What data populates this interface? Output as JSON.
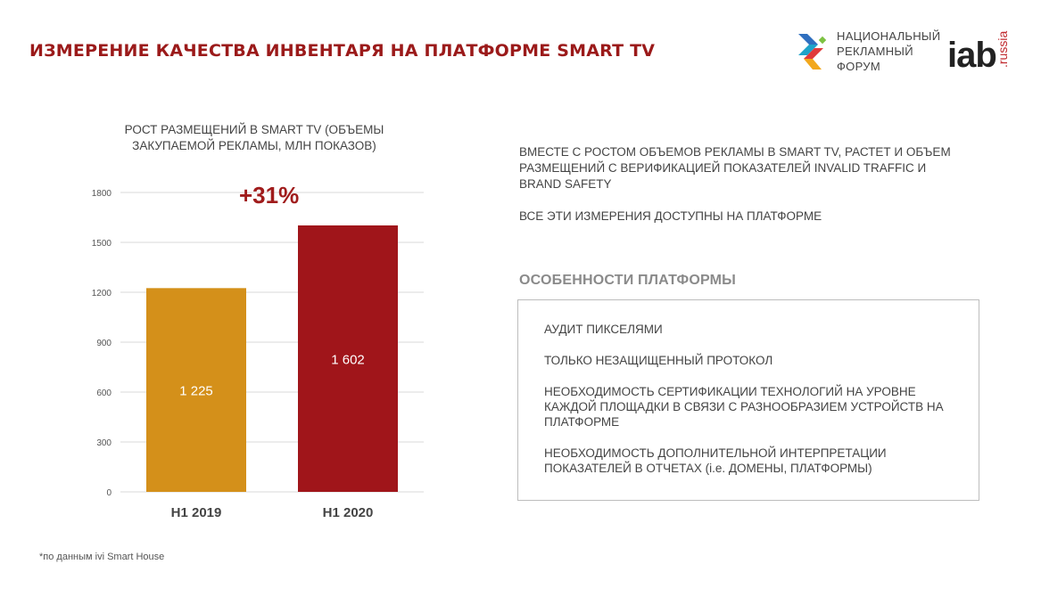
{
  "header": {
    "title": "ИЗМЕРЕНИЕ КАЧЕСТВА ИНВЕНТАРЯ НА ПЛАТФОРМЕ SMART TV",
    "logo_nrf_lines": [
      "НАЦИОНАЛЬНЫЙ",
      "РЕКЛАМНЫЙ",
      "ФОРУМ"
    ],
    "logo_iab": "iab",
    "logo_iab_suffix": ".russia"
  },
  "chart_data": {
    "type": "bar",
    "title": "РОСТ РАЗМЕЩЕНИЙ В SMART TV (ОБЪЕМЫ ЗАКУПАЕМОЙ РЕКЛАМЫ, МЛН ПОКАЗОВ)",
    "categories": [
      "H1 2019",
      "H1 2020"
    ],
    "values": [
      1225,
      1602
    ],
    "value_labels": [
      "1 225",
      "1 602"
    ],
    "colors": [
      "#d4901a",
      "#a0151a"
    ],
    "ylim": [
      0,
      1800
    ],
    "yticks": [
      0,
      300,
      600,
      900,
      1200,
      1500,
      1800
    ],
    "grid": true,
    "annotation": "+31%"
  },
  "intro": {
    "paragraphs": [
      "ВМЕСТЕ С РОСТОМ ОБЪЕМОВ РЕКЛАМЫ В SMART TV, РАСТЕТ И ОБЪЕМ РАЗМЕЩЕНИЙ С ВЕРИФИКАЦИЕЙ ПОКАЗАТЕЛЕЙ INVALID TRAFFIC И BRAND SAFETY",
      "ВСЕ ЭТИ ИЗМЕРЕНИЯ ДОСТУПНЫ НА ПЛАТФОРМЕ"
    ]
  },
  "features": {
    "heading": "ОСОБЕННОСТИ ПЛАТФОРМЫ",
    "items": [
      "АУДИТ ПИКСЕЛЯМИ",
      "ТОЛЬКО НЕЗАЩИЩЕННЫЙ ПРОТОКОЛ",
      "НЕОБХОДИМОСТЬ СЕРТИФИКАЦИИ ТЕХНОЛОГИЙ НА УРОВНЕ КАЖДОЙ ПЛОЩАДКИ В СВЯЗИ С РАЗНООБРАЗИЕМ УСТРОЙСТВ НА ПЛАТФОРМЕ",
      "НЕОБХОДИМОСТЬ ДОПОЛНИТЕЛЬНОЙ ИНТЕРПРЕТАЦИИ ПОКАЗАТЕЛЕЙ В ОТЧЕТАХ (i.e. ДОМЕНЫ, ПЛАТФОРМЫ)"
    ]
  },
  "footnote": "*по данным ivi Smart House"
}
